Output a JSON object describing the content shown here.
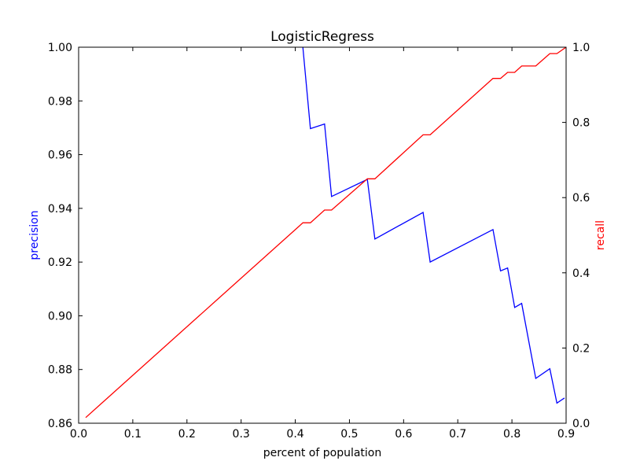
{
  "chart_data": {
    "type": "line",
    "title": "LogisticRegress",
    "xlabel": "percent of population",
    "ylabel_left": "precision",
    "ylabel_right": "recall",
    "xlim": [
      0.0,
      0.9
    ],
    "ylim_left": [
      0.86,
      1.0
    ],
    "ylim_right": [
      0.0,
      1.0
    ],
    "grid": false,
    "x_ticks": [
      "0.0",
      "0.1",
      "0.2",
      "0.3",
      "0.4",
      "0.5",
      "0.6",
      "0.7",
      "0.8",
      "0.9"
    ],
    "y_left_ticks": [
      "0.86",
      "0.88",
      "0.90",
      "0.92",
      "0.94",
      "0.96",
      "0.98",
      "1.00"
    ],
    "y_right_ticks": [
      "0.0",
      "0.2",
      "0.4",
      "0.6",
      "0.8",
      "1.0"
    ],
    "colors": {
      "precision": "#0000ff",
      "recall": "#ff0000",
      "axes": "#000000"
    },
    "series": [
      {
        "axis": "left",
        "color": "#0000ff",
        "points": [
          [
            0.414,
            1.0
          ],
          [
            0.428,
            0.9697
          ],
          [
            0.454,
            0.9714
          ],
          [
            0.467,
            0.9444
          ],
          [
            0.533,
            0.9508
          ],
          [
            0.547,
            0.9286
          ],
          [
            0.636,
            0.9385
          ],
          [
            0.649,
            0.92
          ],
          [
            0.765,
            0.9321
          ],
          [
            0.779,
            0.9167
          ],
          [
            0.792,
            0.9178
          ],
          [
            0.805,
            0.9031
          ],
          [
            0.818,
            0.9046
          ],
          [
            0.844,
            0.8767
          ],
          [
            0.87,
            0.8803
          ],
          [
            0.883,
            0.8675
          ],
          [
            0.897,
            0.8694
          ]
        ]
      },
      {
        "axis": "right",
        "color": "#ff0000",
        "points": [
          [
            0.013,
            0.015
          ],
          [
            0.414,
            0.533
          ],
          [
            0.428,
            0.533
          ],
          [
            0.454,
            0.567
          ],
          [
            0.467,
            0.567
          ],
          [
            0.533,
            0.65
          ],
          [
            0.547,
            0.65
          ],
          [
            0.636,
            0.767
          ],
          [
            0.649,
            0.767
          ],
          [
            0.765,
            0.917
          ],
          [
            0.779,
            0.917
          ],
          [
            0.792,
            0.933
          ],
          [
            0.805,
            0.933
          ],
          [
            0.818,
            0.95
          ],
          [
            0.844,
            0.95
          ],
          [
            0.87,
            0.983
          ],
          [
            0.883,
            0.983
          ],
          [
            0.9,
            1.0
          ]
        ]
      }
    ]
  }
}
